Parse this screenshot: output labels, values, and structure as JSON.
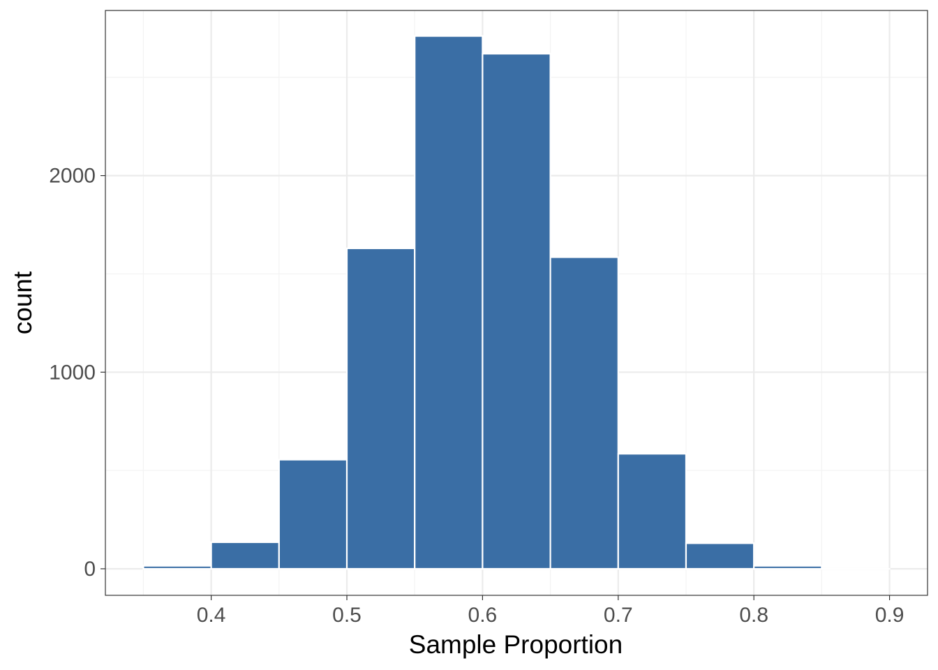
{
  "chart_data": {
    "type": "bar",
    "chart_kind": "histogram",
    "title": "",
    "xlabel": "Sample Proportion",
    "ylabel": "count",
    "bins": [
      {
        "x0": 0.35,
        "x1": 0.4,
        "count": 15
      },
      {
        "x0": 0.4,
        "x1": 0.45,
        "count": 135
      },
      {
        "x0": 0.45,
        "x1": 0.5,
        "count": 555
      },
      {
        "x0": 0.5,
        "x1": 0.55,
        "count": 1630
      },
      {
        "x0": 0.55,
        "x1": 0.6,
        "count": 2710
      },
      {
        "x0": 0.6,
        "x1": 0.65,
        "count": 2620
      },
      {
        "x0": 0.65,
        "x1": 0.7,
        "count": 1585
      },
      {
        "x0": 0.7,
        "x1": 0.75,
        "count": 585
      },
      {
        "x0": 0.75,
        "x1": 0.8,
        "count": 130
      },
      {
        "x0": 0.8,
        "x1": 0.85,
        "count": 15
      },
      {
        "x0": 0.85,
        "x1": 0.9,
        "count": 0
      }
    ],
    "xlim": [
      0.322,
      0.928
    ],
    "ylim": [
      -135,
      2840
    ],
    "xticks": [
      0.4,
      0.5,
      0.6,
      0.7,
      0.8,
      0.9
    ],
    "xtick_labels": [
      "0.4",
      "0.5",
      "0.6",
      "0.7",
      "0.8",
      "0.9"
    ],
    "yticks": [
      0,
      1000,
      2000
    ],
    "ytick_labels": [
      "0",
      "1000",
      "2000"
    ],
    "grid": true,
    "legend": "none",
    "colors": {
      "bar_fill": "#3a6ea5",
      "bar_border": "#ffffff",
      "grid_major": "#ebebeb",
      "grid_minor": "#f3f3f3",
      "panel_border": "#333333",
      "tick_text": "#4d4d4d",
      "axis_title": "#000000"
    }
  }
}
